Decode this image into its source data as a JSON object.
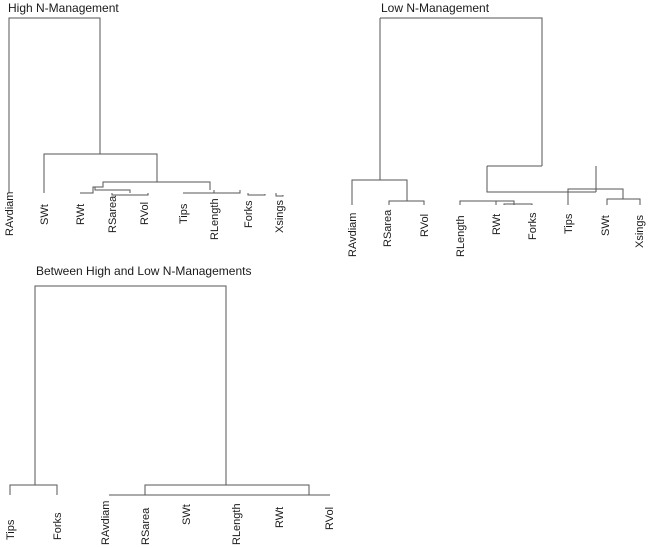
{
  "dendrograms": [
    {
      "title": "High N-Management",
      "leaves": [
        "RAvdiam",
        "SWt",
        "RWt",
        "RSarea",
        "RVol",
        "Tips",
        "RLength",
        "Forks",
        "Xsings"
      ]
    },
    {
      "title": "Low N-Management",
      "leaves": [
        "RAvdiam",
        "RSarea",
        "RVol",
        "RLength",
        "RWt",
        "Forks",
        "Tips",
        "SWt",
        "Xsings"
      ]
    },
    {
      "title": "Between High and Low  N-Managements",
      "leaves": [
        "Tips",
        "Forks",
        "RAvdiam",
        "RSarea",
        "SWt",
        "RLength",
        "RWt",
        "RVol"
      ]
    }
  ]
}
